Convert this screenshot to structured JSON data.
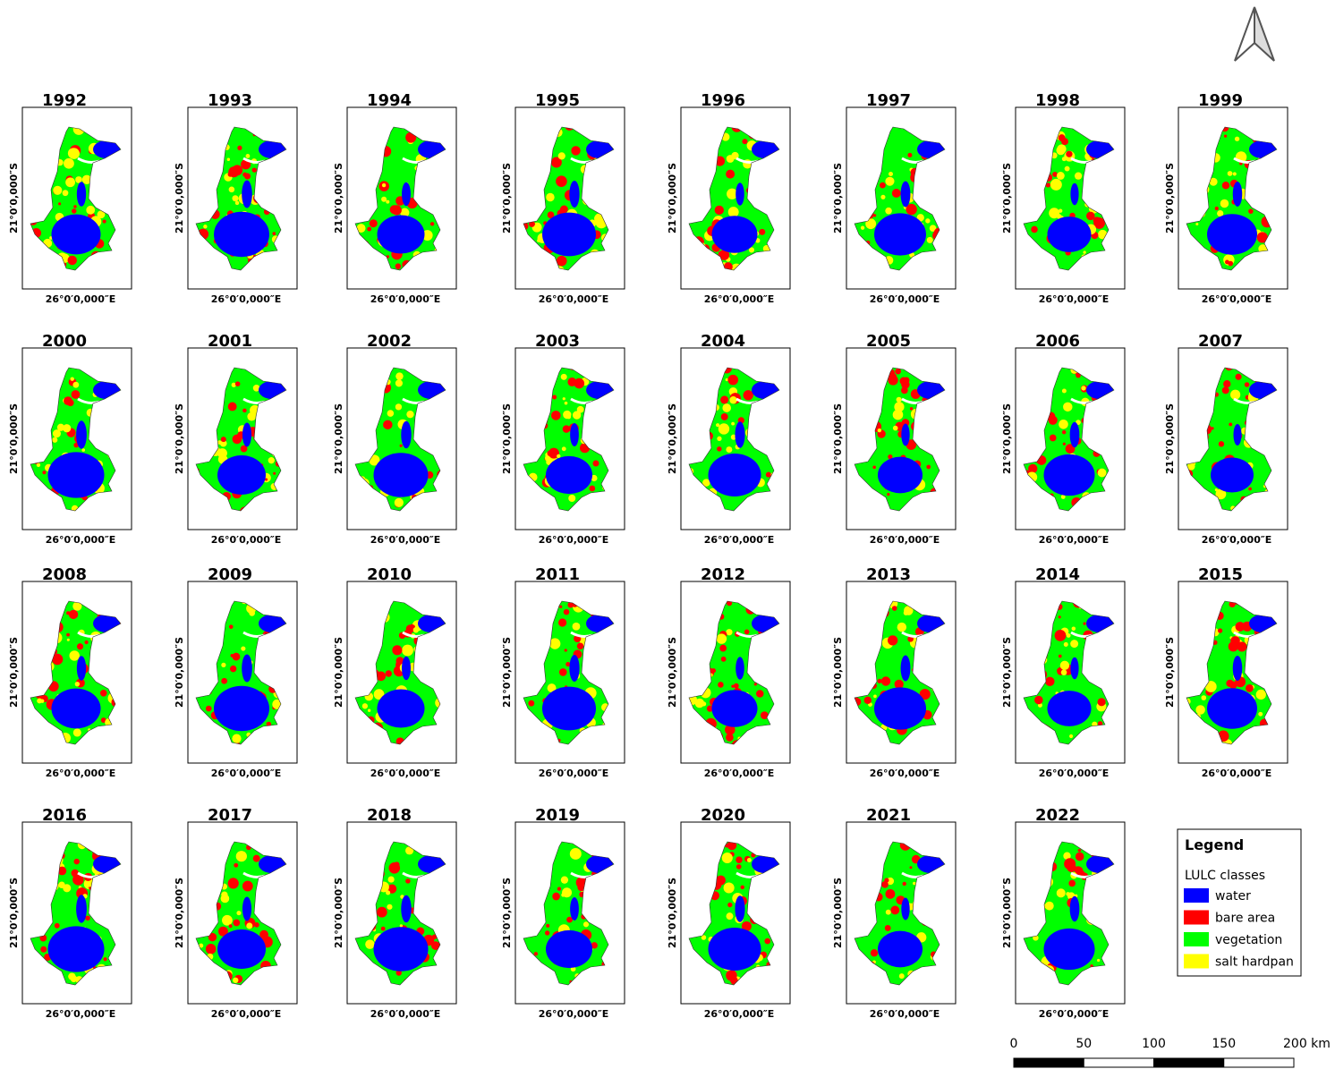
{
  "panels": [
    {
      "year": "1992"
    },
    {
      "year": "1993"
    },
    {
      "year": "1994"
    },
    {
      "year": "1995"
    },
    {
      "year": "1996"
    },
    {
      "year": "1997"
    },
    {
      "year": "1998"
    },
    {
      "year": "1999"
    },
    {
      "year": "2000"
    },
    {
      "year": "2001"
    },
    {
      "year": "2002"
    },
    {
      "year": "2003"
    },
    {
      "year": "2004"
    },
    {
      "year": "2005"
    },
    {
      "year": "2006"
    },
    {
      "year": "2007"
    },
    {
      "year": "2008"
    },
    {
      "year": "2009"
    },
    {
      "year": "2010"
    },
    {
      "year": "2011"
    },
    {
      "year": "2012"
    },
    {
      "year": "2013"
    },
    {
      "year": "2014"
    },
    {
      "year": "2015"
    },
    {
      "year": "2016"
    },
    {
      "year": "2017"
    },
    {
      "year": "2018"
    },
    {
      "year": "2019"
    },
    {
      "year": "2020"
    },
    {
      "year": "2021"
    },
    {
      "year": "2022"
    }
  ],
  "axis_labels": {
    "lat": "21°0′0,000″S",
    "lon": "26°0′0,000″E"
  },
  "legend": {
    "title": "Legend",
    "group": "LULC classes",
    "classes": [
      {
        "name": "water",
        "color": "#0000ff"
      },
      {
        "name": "bare area",
        "color": "#ff0000"
      },
      {
        "name": "vegetation",
        "color": "#00ff00"
      },
      {
        "name": "salt hardpan",
        "color": "#ffff00"
      }
    ]
  },
  "scale_bar": {
    "ticks": [
      0,
      50,
      100,
      150,
      {
        "value": 200,
        "label": "200 km"
      }
    ]
  }
}
